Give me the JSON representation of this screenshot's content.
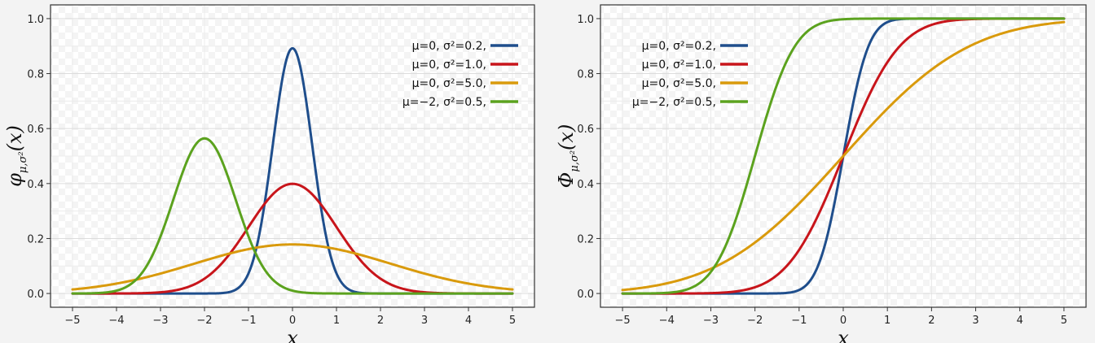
{
  "chart_data": [
    {
      "type": "line",
      "function": "pdf",
      "xlabel": "x",
      "ylabel": "φμ,σ²(x)",
      "ylabel_main": "φ",
      "ylabel_sub": "μ,σ²",
      "ylabel_arg": "(x)",
      "xlim": [
        -5.5,
        5.5
      ],
      "ylim": [
        -0.05,
        1.05
      ],
      "xticks": [
        "−5",
        "−4",
        "−3",
        "−2",
        "−1",
        "0",
        "1",
        "2",
        "3",
        "4",
        "5"
      ],
      "xtick_values": [
        -5,
        -4,
        -3,
        -2,
        -1,
        0,
        1,
        2,
        3,
        4,
        5
      ],
      "yticks": [
        "0.0",
        "0.2",
        "0.4",
        "0.6",
        "0.8",
        "1.0"
      ],
      "ytick_values": [
        0,
        0.2,
        0.4,
        0.6,
        0.8,
        1.0
      ],
      "grid": true,
      "legend_position": "top-right",
      "series": [
        {
          "name": "μ=0, σ²=0.2,",
          "mu": 0,
          "sigma2": 0.2,
          "color": "#1f4e8c"
        },
        {
          "name": "μ=0, σ²=1.0,",
          "mu": 0,
          "sigma2": 1.0,
          "color": "#c8151b"
        },
        {
          "name": "μ=0, σ²=5.0,",
          "mu": 0,
          "sigma2": 5.0,
          "color": "#d99a0c"
        },
        {
          "name": "μ=−2, σ²=0.5,",
          "mu": -2,
          "sigma2": 0.5,
          "color": "#5ba21e"
        }
      ]
    },
    {
      "type": "line",
      "function": "cdf",
      "xlabel": "x",
      "ylabel": "Φμ,σ²(x)",
      "ylabel_main": "Φ",
      "ylabel_sub": "μ,σ²",
      "ylabel_arg": "(x)",
      "xlim": [
        -5.5,
        5.5
      ],
      "ylim": [
        -0.05,
        1.05
      ],
      "xticks": [
        "−5",
        "−4",
        "−3",
        "−2",
        "−1",
        "0",
        "1",
        "2",
        "3",
        "4",
        "5"
      ],
      "xtick_values": [
        -5,
        -4,
        -3,
        -2,
        -1,
        0,
        1,
        2,
        3,
        4,
        5
      ],
      "yticks": [
        "0.0",
        "0.2",
        "0.4",
        "0.6",
        "0.8",
        "1.0"
      ],
      "ytick_values": [
        0,
        0.2,
        0.4,
        0.6,
        0.8,
        1.0
      ],
      "grid": true,
      "legend_position": "top-left",
      "series": [
        {
          "name": "μ=0, σ²=0.2,",
          "mu": 0,
          "sigma2": 0.2,
          "color": "#1f4e8c"
        },
        {
          "name": "μ=0, σ²=1.0,",
          "mu": 0,
          "sigma2": 1.0,
          "color": "#c8151b"
        },
        {
          "name": "μ=0, σ²=5.0,",
          "mu": 0,
          "sigma2": 5.0,
          "color": "#d99a0c"
        },
        {
          "name": "μ=−2, σ²=0.5,",
          "mu": -2,
          "sigma2": 0.5,
          "color": "#5ba21e"
        }
      ]
    }
  ]
}
